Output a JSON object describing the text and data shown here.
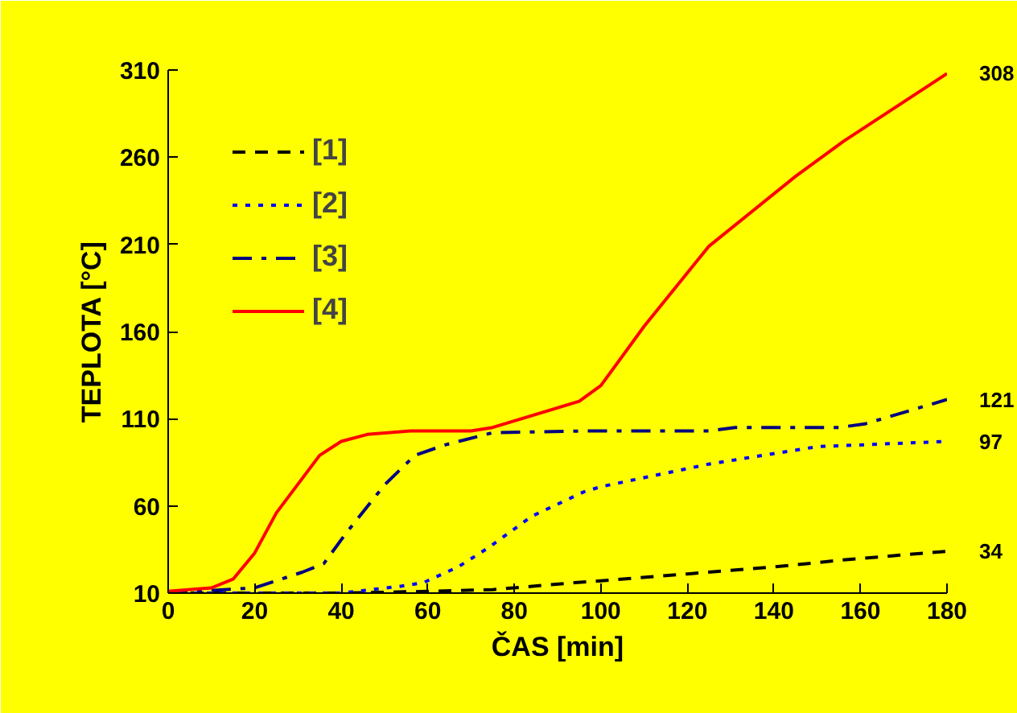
{
  "chart_data": {
    "type": "line",
    "xlabel": "ČAS [min]",
    "ylabel": "TEPLOTA [°C]",
    "xlim": [
      0,
      180
    ],
    "ylim": [
      10,
      310
    ],
    "xticks": [
      0,
      20,
      40,
      60,
      80,
      100,
      120,
      140,
      160,
      180
    ],
    "yticks": [
      10,
      60,
      110,
      160,
      210,
      260,
      310
    ],
    "grid": false,
    "legend": "top left",
    "marker": "none",
    "series": [
      {
        "name": "[1]",
        "color": "#000000",
        "line_style": "dashed",
        "x": [
          0,
          20,
          40,
          60,
          75,
          94,
          100,
          120,
          140,
          156,
          180
        ],
        "values": [
          10,
          10,
          10,
          11,
          12,
          16,
          17,
          21,
          25,
          29,
          34
        ],
        "value_labels": [
          null,
          null,
          null,
          null,
          null,
          null,
          null,
          null,
          null,
          null,
          "34"
        ]
      },
      {
        "name": "[2]",
        "color": "#0000ff",
        "line_style": "dotted",
        "x": [
          0,
          20,
          40,
          54,
          59,
          67,
          74,
          84,
          96,
          100,
          125,
          150,
          180
        ],
        "values": [
          10,
          10,
          10,
          14,
          16,
          25,
          36,
          54,
          68,
          71,
          84,
          94,
          97
        ],
        "value_labels": [
          null,
          null,
          null,
          null,
          null,
          null,
          null,
          null,
          null,
          null,
          null,
          null,
          "97"
        ]
      },
      {
        "name": "[3]",
        "color": "#000080",
        "line_style": "dashdot",
        "x": [
          0,
          20,
          31,
          36,
          41,
          50,
          57,
          64,
          75,
          96,
          125,
          131,
          155,
          161,
          180
        ],
        "values": [
          10,
          13,
          22,
          27,
          44,
          72,
          89,
          95,
          102,
          103,
          103,
          105,
          105,
          107,
          121
        ],
        "value_labels": [
          null,
          null,
          null,
          null,
          null,
          null,
          null,
          null,
          null,
          null,
          null,
          null,
          null,
          null,
          "121"
        ]
      },
      {
        "name": "[4]",
        "color": "#ff0000",
        "line_style": "solid",
        "x": [
          0,
          10,
          15,
          20,
          25,
          35,
          40,
          46,
          56,
          70,
          75,
          95,
          100,
          110,
          125,
          145,
          156,
          180
        ],
        "values": [
          11,
          13,
          18,
          33,
          56,
          89,
          97,
          101,
          103,
          103,
          105,
          120,
          129,
          163,
          209,
          249,
          269,
          308
        ],
        "value_labels": [
          null,
          null,
          null,
          null,
          null,
          null,
          null,
          null,
          null,
          null,
          null,
          null,
          null,
          null,
          null,
          null,
          null,
          "308"
        ]
      }
    ]
  }
}
